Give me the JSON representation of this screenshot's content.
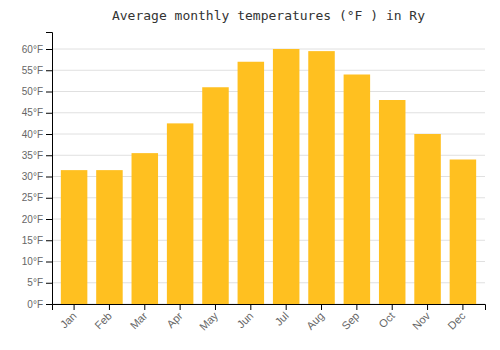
{
  "chart_data": {
    "type": "bar",
    "title": "Average monthly temperatures (°F ) in Ry",
    "categories": [
      "Jan",
      "Feb",
      "Mar",
      "Apr",
      "May",
      "Jun",
      "Jul",
      "Aug",
      "Sep",
      "Oct",
      "Nov",
      "Dec"
    ],
    "values": [
      31.5,
      31.5,
      35.5,
      42.5,
      51,
      57,
      60,
      59.5,
      54,
      48,
      40,
      34
    ],
    "color": "#FFC020",
    "ylim": [
      0,
      64
    ],
    "yticks": [
      {
        "value": 0,
        "label": "0°F"
      },
      {
        "value": 5,
        "label": "5°F"
      },
      {
        "value": 10,
        "label": "10°F"
      },
      {
        "value": 15,
        "label": "15°F"
      },
      {
        "value": 20,
        "label": "20°F"
      },
      {
        "value": 25,
        "label": "25°F"
      },
      {
        "value": 30,
        "label": "30°F"
      },
      {
        "value": 35,
        "label": "35°F"
      },
      {
        "value": 40,
        "label": "40°F"
      },
      {
        "value": 45,
        "label": "45°F"
      },
      {
        "value": 50,
        "label": "50°F"
      },
      {
        "value": 55,
        "label": "55°F"
      },
      {
        "value": 60,
        "label": "60°F"
      }
    ],
    "grid": true
  }
}
